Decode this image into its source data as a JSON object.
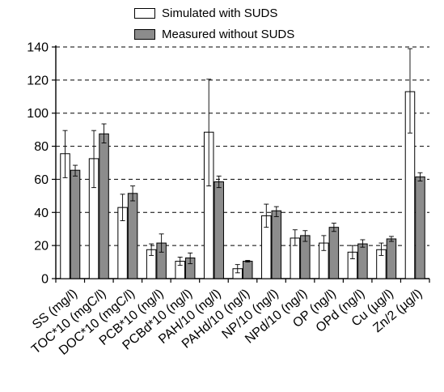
{
  "chart_data": {
    "type": "bar",
    "title": "",
    "xlabel": "",
    "ylabel": "",
    "ylim": [
      0,
      140
    ],
    "yticks": [
      0,
      20,
      40,
      60,
      80,
      100,
      120,
      140
    ],
    "grid": "horizontal-dashed",
    "legend_position": "top",
    "categories": [
      "SS (mg/l)",
      "TOC*10 (mgC/l)",
      "DOC*10 (mgC/l)",
      "PCB*10 (ng/l)",
      "PCBd*10 (ng/l)",
      "PAH/10 (ng/l)",
      "PAHd/10 (ng/l)",
      "NP/10 (ng/l)",
      "NPd/10 (ng/l)",
      "OP (ng/l)",
      "OPd (ng/l)",
      "Cu (µg/l)",
      "Zn/2 (µg/l)"
    ],
    "series": [
      {
        "name": "Simulated with SUDS",
        "color": "#ffffff",
        "values": [
          75.5,
          72.5,
          43,
          17.5,
          10.5,
          88.5,
          6,
          38,
          24.5,
          21.5,
          16,
          17.5,
          113
        ],
        "error_low": [
          61,
          55,
          35,
          14,
          8,
          56,
          3.5,
          31,
          20,
          17,
          12,
          14,
          88
        ],
        "error_high": [
          89.5,
          89.5,
          51,
          21,
          13,
          120.5,
          8.5,
          45,
          29.5,
          26,
          20,
          21.5,
          139
        ]
      },
      {
        "name": "Measured without SUDS",
        "color": "#8c8c8c",
        "values": [
          65.5,
          87.5,
          51.5,
          21.5,
          12.5,
          58.5,
          10.5,
          41,
          26,
          31,
          21,
          24,
          61.5
        ],
        "error_low": [
          62,
          82,
          47,
          16,
          9,
          55,
          10,
          37.5,
          22.5,
          28.5,
          19,
          22.5,
          59
        ],
        "error_high": [
          68.5,
          93.5,
          56,
          27,
          15.5,
          62,
          11,
          43.5,
          29,
          33.5,
          23.5,
          25.5,
          64
        ]
      }
    ]
  }
}
